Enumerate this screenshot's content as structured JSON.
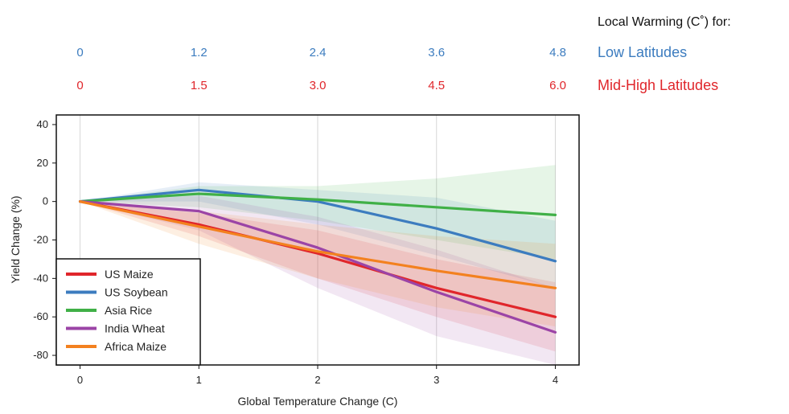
{
  "chart_data": {
    "type": "line",
    "xlabel": "Global Temperature Change (C)",
    "ylabel": "Yield Change (%)",
    "xlim": [
      -0.2,
      4.2
    ],
    "ylim": [
      -85,
      45
    ],
    "x_ticks": [
      "0",
      "1",
      "2",
      "3",
      "4"
    ],
    "y_ticks": [
      "40",
      "20",
      "0",
      "-20",
      "-40",
      "-60",
      "-80"
    ],
    "x": [
      0,
      1,
      2,
      3,
      4
    ],
    "grid": "vertical",
    "legend_position": "bottom-left",
    "series": [
      {
        "name": "US Maize",
        "color": "#e0262b",
        "values": [
          0,
          -12,
          -27,
          -45,
          -60
        ],
        "lower": [
          0,
          -18,
          -40,
          -60,
          -78
        ],
        "upper": [
          0,
          -6,
          -15,
          -30,
          -42
        ]
      },
      {
        "name": "US Soybean",
        "color": "#3c7cbf",
        "values": [
          0,
          6,
          0,
          -14,
          -31
        ],
        "lower": [
          0,
          0,
          -12,
          -28,
          -45
        ],
        "upper": [
          0,
          10,
          6,
          2,
          -10
        ]
      },
      {
        "name": "Asia Rice",
        "color": "#40b047",
        "values": [
          0,
          4,
          1,
          -3,
          -7
        ],
        "lower": [
          0,
          -3,
          -10,
          -20,
          -30
        ],
        "upper": [
          0,
          8,
          8,
          12,
          19
        ]
      },
      {
        "name": "India Wheat",
        "color": "#9b44a6",
        "values": [
          0,
          -5,
          -24,
          -47,
          -68
        ],
        "lower": [
          0,
          -15,
          -45,
          -70,
          -85
        ],
        "upper": [
          0,
          3,
          -8,
          -25,
          -45
        ]
      },
      {
        "name": "Africa Maize",
        "color": "#f3811f",
        "values": [
          0,
          -13,
          -26,
          -36,
          -45
        ],
        "lower": [
          0,
          -22,
          -40,
          -55,
          -65
        ],
        "upper": [
          0,
          -5,
          -12,
          -18,
          -22
        ]
      }
    ]
  },
  "local_warming": {
    "header": "Local Warming (C˚) for:",
    "rows": [
      {
        "label": "Low Latitudes",
        "color": "#3c7cbf",
        "values": [
          "0",
          "1.2",
          "2.4",
          "3.6",
          "4.8"
        ]
      },
      {
        "label": "Mid-High Latitudes",
        "color": "#e0262b",
        "values": [
          "0",
          "1.5",
          "3.0",
          "4.5",
          "6.0"
        ]
      }
    ]
  }
}
